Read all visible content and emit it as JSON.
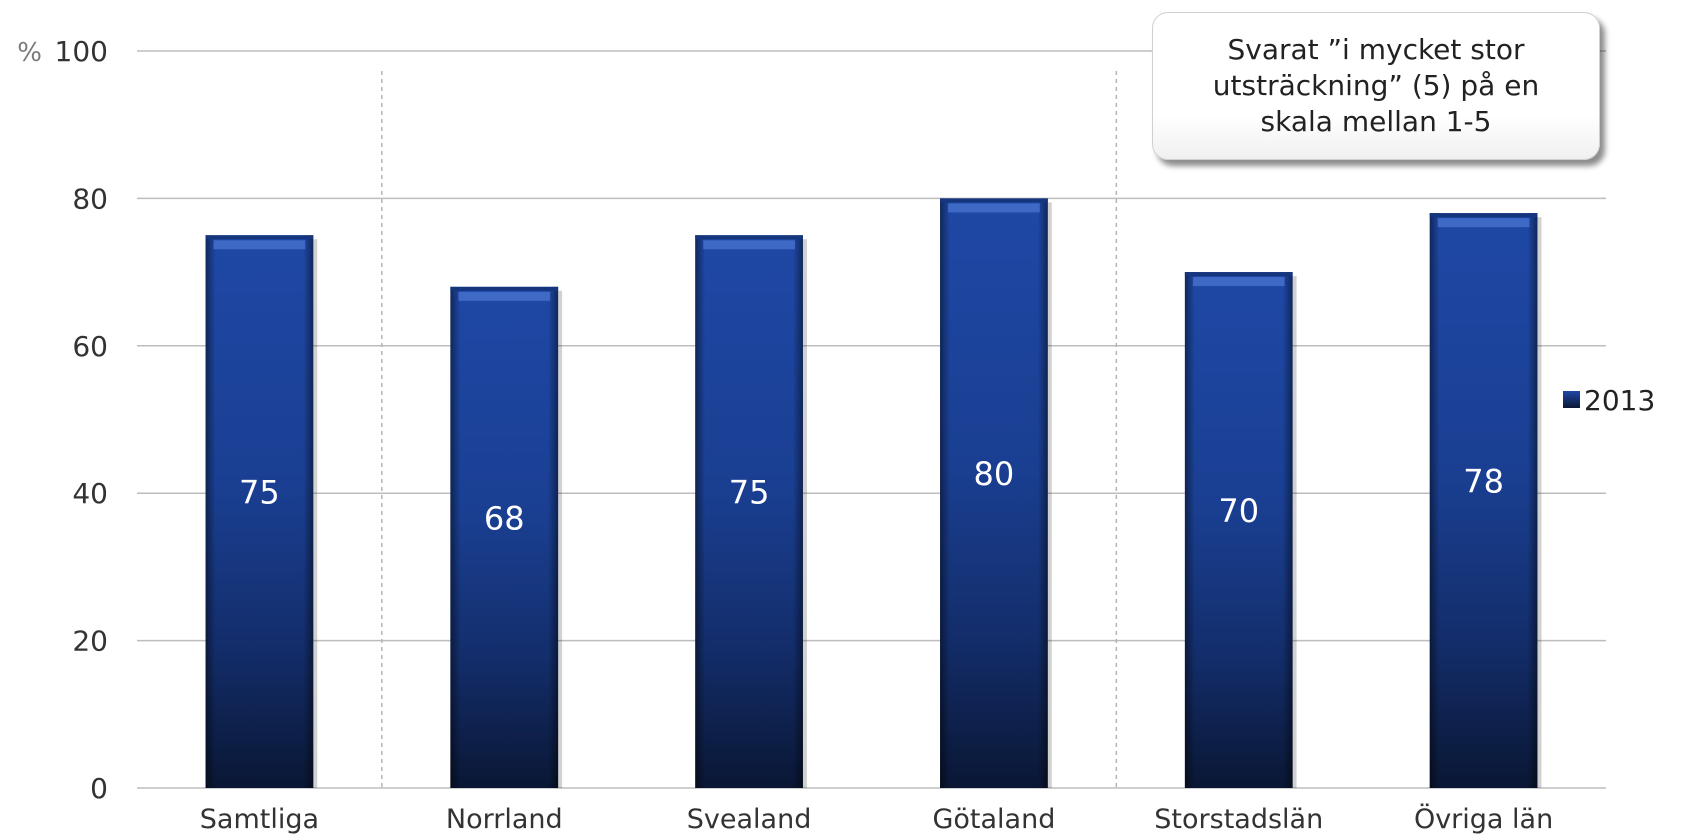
{
  "chart_data": {
    "type": "bar",
    "categories": [
      "Samtliga",
      "Norrland",
      "Svealand",
      "Götaland",
      "Storstadslän",
      "Övriga län"
    ],
    "series": [
      {
        "name": "2013",
        "values": [
          75,
          68,
          75,
          80,
          70,
          78
        ]
      }
    ],
    "data_labels": [
      "75",
      "68",
      "75",
      "80",
      "70",
      "78"
    ],
    "y_unit": "%",
    "ylim": [
      0,
      100
    ],
    "yticks": [
      0,
      20,
      40,
      60,
      80,
      100
    ],
    "grid": true,
    "group_separators_after": [
      "Samtliga",
      "Götaland"
    ],
    "legend": "right",
    "annotation": "Svarat ”i mycket stor utsträckning” (5) på en skala mellan 1-5",
    "bar_color": "#1c3f8f"
  }
}
